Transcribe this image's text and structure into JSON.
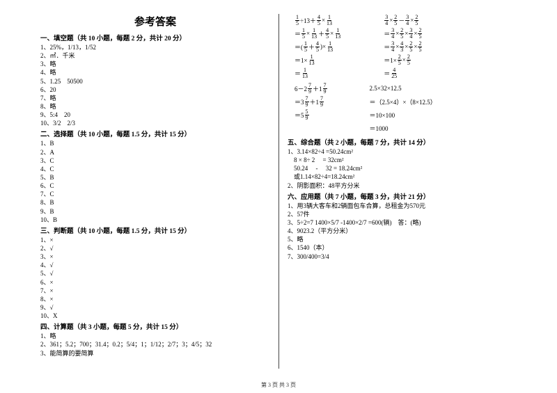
{
  "title": "参考答案",
  "left": {
    "sec1": {
      "head": "一、填空题（共 10 小题，每题 2 分，共计 20 分）",
      "items": [
        "1、25%，1/13，1/52",
        "2、㎡．千米",
        "3、略",
        "4、略",
        "5、1.25　50500",
        "6、20",
        "7、略",
        "8、略",
        "9、5:4　20",
        "10、3/2　2/3"
      ]
    },
    "sec2": {
      "head": "二、选择题（共 10 小题，每题 1.5 分，共计 15 分）",
      "items": [
        "1、B",
        "2、A",
        "3、C",
        "4、C",
        "5、B",
        "6、C",
        "7、C",
        "8、B",
        "9、B",
        "10、B"
      ]
    },
    "sec3": {
      "head": "三、判断题（共 10 小题，每题 1.5 分，共计 15 分）",
      "items": [
        "1、×",
        "2、√",
        "3、×",
        "4、√",
        "5、√",
        "6、×",
        "7、×",
        "8、×",
        "9、√",
        "10、X"
      ]
    },
    "sec4": {
      "head": "四、计算题（共 3 小题，每题 5 分，共计 15 分）",
      "items": [
        "1、略",
        "2、361；5.2；700；31.4；0.2；5/4；1；1/12；2/7；3；4/5；32",
        "3、能简算的要简算"
      ]
    }
  },
  "right": {
    "mathA": {
      "l1": {
        "pre": "",
        "a": "1",
        "b": "5",
        "mid": "÷13＋",
        "c": "4",
        "d": "5",
        "mid2": "×",
        "e": "1",
        "f": "13"
      },
      "l2": {
        "pre": "＝",
        "a": "1",
        "b": "5",
        "mid": "×",
        "c": "1",
        "d": "13",
        "mid2": "＋",
        "e": "4",
        "f": "5",
        "mid3": "×",
        "g": "1",
        "h": "13"
      },
      "l3": {
        "pre": "＝(",
        "a": "1",
        "b": "5",
        "mid": "＋",
        "c": "4",
        "d": "5",
        "mid2": ")×",
        "e": "1",
        "f": "13"
      },
      "l4": {
        "pre": "＝1×",
        "a": "1",
        "b": "13"
      },
      "l5": {
        "pre": "＝",
        "a": "1",
        "b": "13"
      }
    },
    "mathB": {
      "l1": {
        "pre": "",
        "a": "3",
        "b": "4",
        "mid": "×",
        "c": "2",
        "d": "5",
        "mid2": "－",
        "e": "3",
        "f": "4",
        "mid3": "×",
        "g": "2",
        "h": "5"
      },
      "l2": {
        "pre": "＝",
        "a": "3",
        "b": "4",
        "mid": "×",
        "c": "2",
        "d": "5",
        "mid2": "×",
        "e": "3",
        "f": "4",
        "mid3": "×",
        "g": "2",
        "h": "5"
      },
      "l3": {
        "pre": "＝",
        "a": "3",
        "b": "4",
        "mid": "×",
        "c": "4",
        "d": "3",
        "mid2": "×",
        "e": "2",
        "f": "5",
        "mid3": "×",
        "g": "2",
        "h": "5"
      },
      "l4": {
        "pre": "＝1×",
        "a": "2",
        "b": "5",
        "mid": "×",
        "c": "2",
        "d": "5"
      },
      "l5": {
        "pre": "＝",
        "a": "4",
        "b": "25"
      }
    },
    "mathC": {
      "l1": {
        "pre": "6－2",
        "a": "7",
        "b": "9",
        "mid": "＋1",
        "c": "7",
        "d": "9"
      },
      "l2": {
        "pre": "＝3",
        "a": "7",
        "b": "9",
        "mid": "＋1",
        "c": "7",
        "d": "9"
      },
      "l3": {
        "pre": "＝5",
        "a": "5",
        "b": "9"
      }
    },
    "mathD": {
      "l1": "2.5×32×12.5",
      "l2": "＝（2.5×4）×（8×12.5）",
      "l3": "＝10×100",
      "l4": "＝1000"
    },
    "sec5": {
      "head": "五、综合题（共 2 小题，每题 7 分，共计 14 分）",
      "items": [
        "1、3.14×82÷4 =50.24cm²",
        "　8 × 8÷ 2 　= 32cm²",
        "　50.24 　- 　32 = 18.24cm²",
        "　或1.14×82÷4=18.24cm²",
        "2、阴影面积：48平方分米"
      ]
    },
    "sec6": {
      "head": "六、应用题（共 7 小题，每题 3 分，共计 21 分）",
      "items": [
        "1、用3辆大客车和2辆面包车合算，总租金为570元",
        "2、57件",
        "3、5÷2=7 1400×5/7 -1400×2/7 =600(辆)　答：(略)",
        "4、9023.2（平方分米）",
        "5、略",
        "6、1540（本）",
        "7、300/400=3/4"
      ]
    }
  },
  "footer": "第 3 页 共 3 页"
}
